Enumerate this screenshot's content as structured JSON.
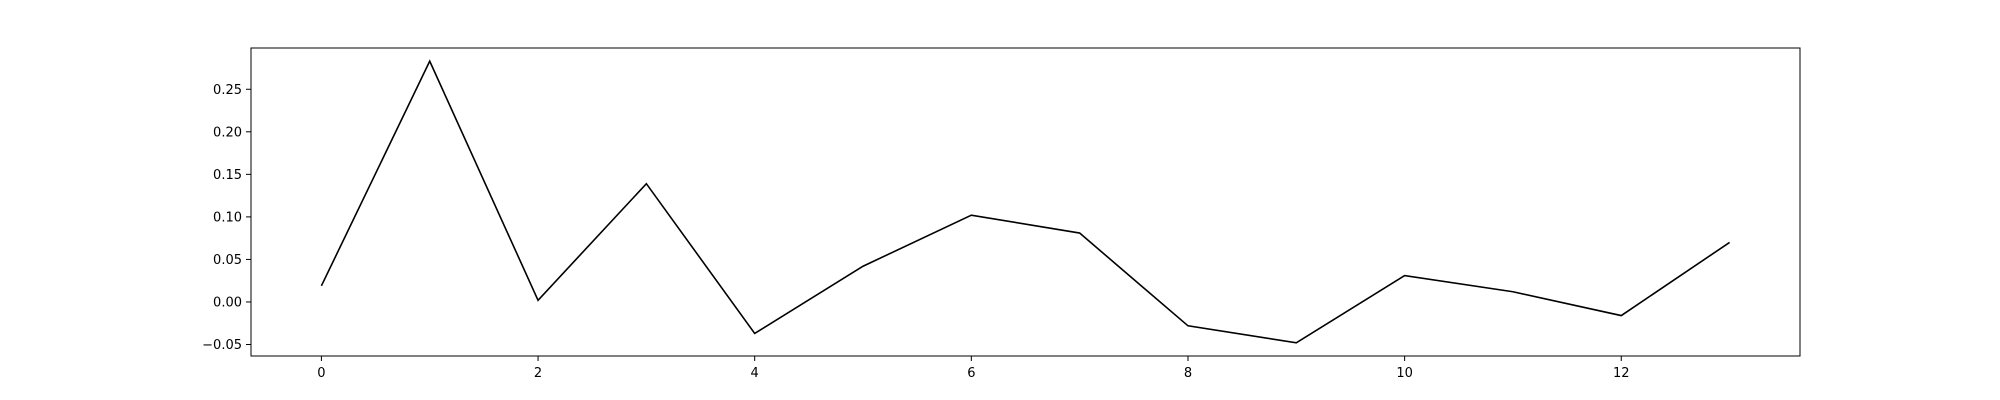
{
  "chart_data": {
    "type": "line",
    "title": "",
    "xlabel": "",
    "ylabel": "",
    "x": [
      0,
      1,
      2,
      3,
      4,
      5,
      6,
      7,
      8,
      9,
      10,
      11,
      12,
      13
    ],
    "series": [
      {
        "values": [
          0.019,
          0.283,
          0.002,
          0.139,
          -0.037,
          0.042,
          0.102,
          0.081,
          -0.028,
          -0.048,
          0.031,
          0.012,
          -0.016,
          0.07
        ],
        "color": "#000000"
      }
    ],
    "xlim": [
      -0.65,
      13.65
    ],
    "ylim": [
      -0.0635,
      0.2985
    ],
    "xticks": [
      0,
      2,
      4,
      6,
      8,
      10,
      12
    ],
    "xtick_labels": [
      "0",
      "2",
      "4",
      "6",
      "8",
      "10",
      "12"
    ],
    "yticks": [
      -0.05,
      0.0,
      0.05,
      0.1,
      0.15,
      0.2,
      0.25
    ],
    "ytick_labels": [
      "−0.05",
      "0.00",
      "0.05",
      "0.10",
      "0.15",
      "0.20",
      "0.25"
    ],
    "grid": false,
    "legend": "none"
  }
}
